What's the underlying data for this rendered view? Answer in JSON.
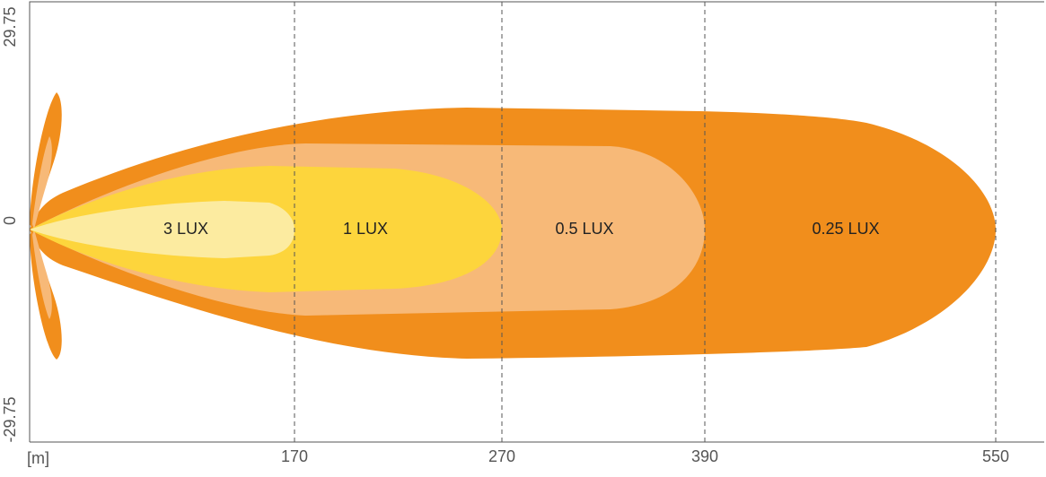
{
  "y_axis": {
    "labels": [
      "29.75",
      "0",
      "-29.75"
    ]
  },
  "x_axis": {
    "unit": "[m]",
    "labels": [
      "170",
      "270",
      "390",
      "550"
    ]
  },
  "zones": [
    "3 LUX",
    "1 LUX",
    "0.5 LUX",
    "0.25 LUX"
  ]
}
